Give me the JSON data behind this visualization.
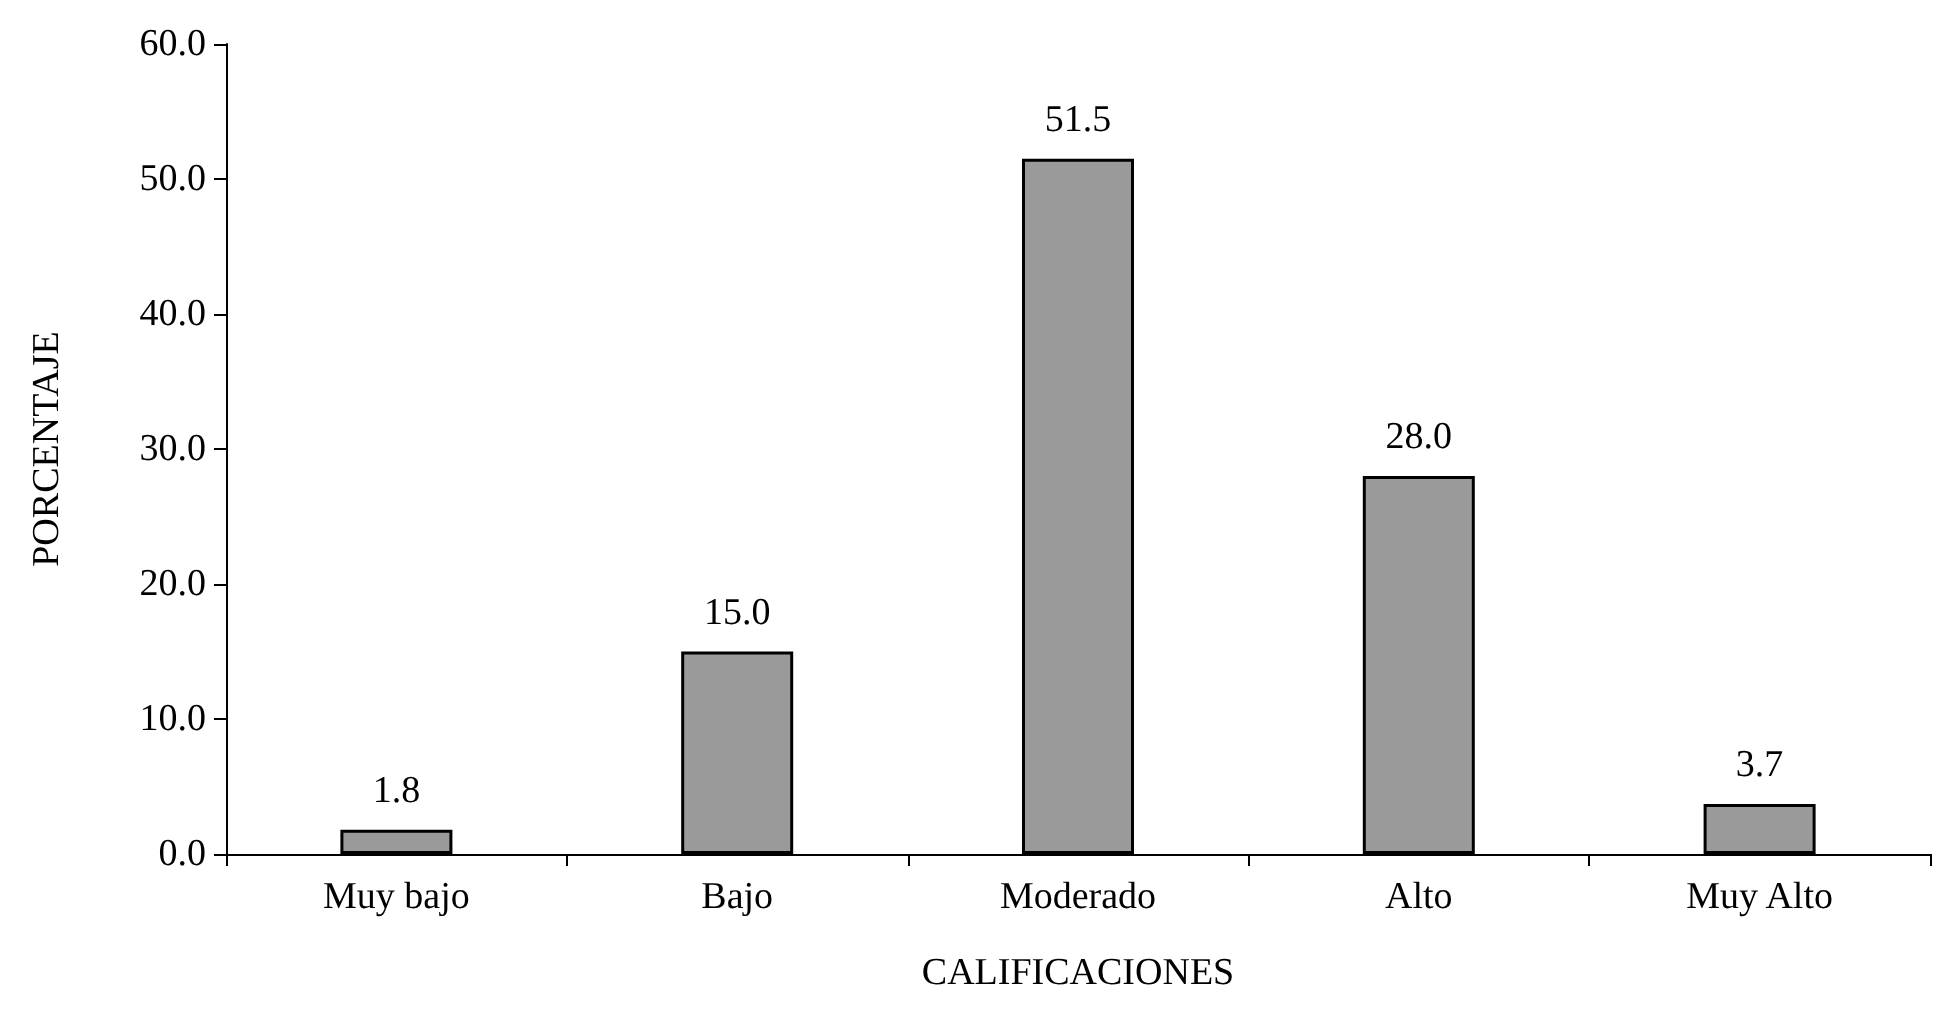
{
  "chart_data": {
    "type": "bar",
    "xlabel": "CALIFICACIONES",
    "ylabel": "PORCENTAJE",
    "categories": [
      "Muy bajo",
      "Bajo",
      "Moderado",
      "Alto",
      "Muy Alto"
    ],
    "values": [
      1.8,
      15.0,
      51.5,
      28.0,
      3.7
    ],
    "value_labels": [
      "1.8",
      "15.0",
      "51.5",
      "28.0",
      "3.7"
    ],
    "color": "#9a9a9a",
    "ylim": [
      0,
      60
    ],
    "yticks": [
      {
        "value": 0,
        "label": "0.0"
      },
      {
        "value": 10,
        "label": "10.0"
      },
      {
        "value": 20,
        "label": "20.0"
      },
      {
        "value": 30,
        "label": "30.0"
      },
      {
        "value": 40,
        "label": "40.0"
      },
      {
        "value": 50,
        "label": "50.0"
      },
      {
        "value": 60,
        "label": "60.0"
      }
    ],
    "grid": false
  }
}
